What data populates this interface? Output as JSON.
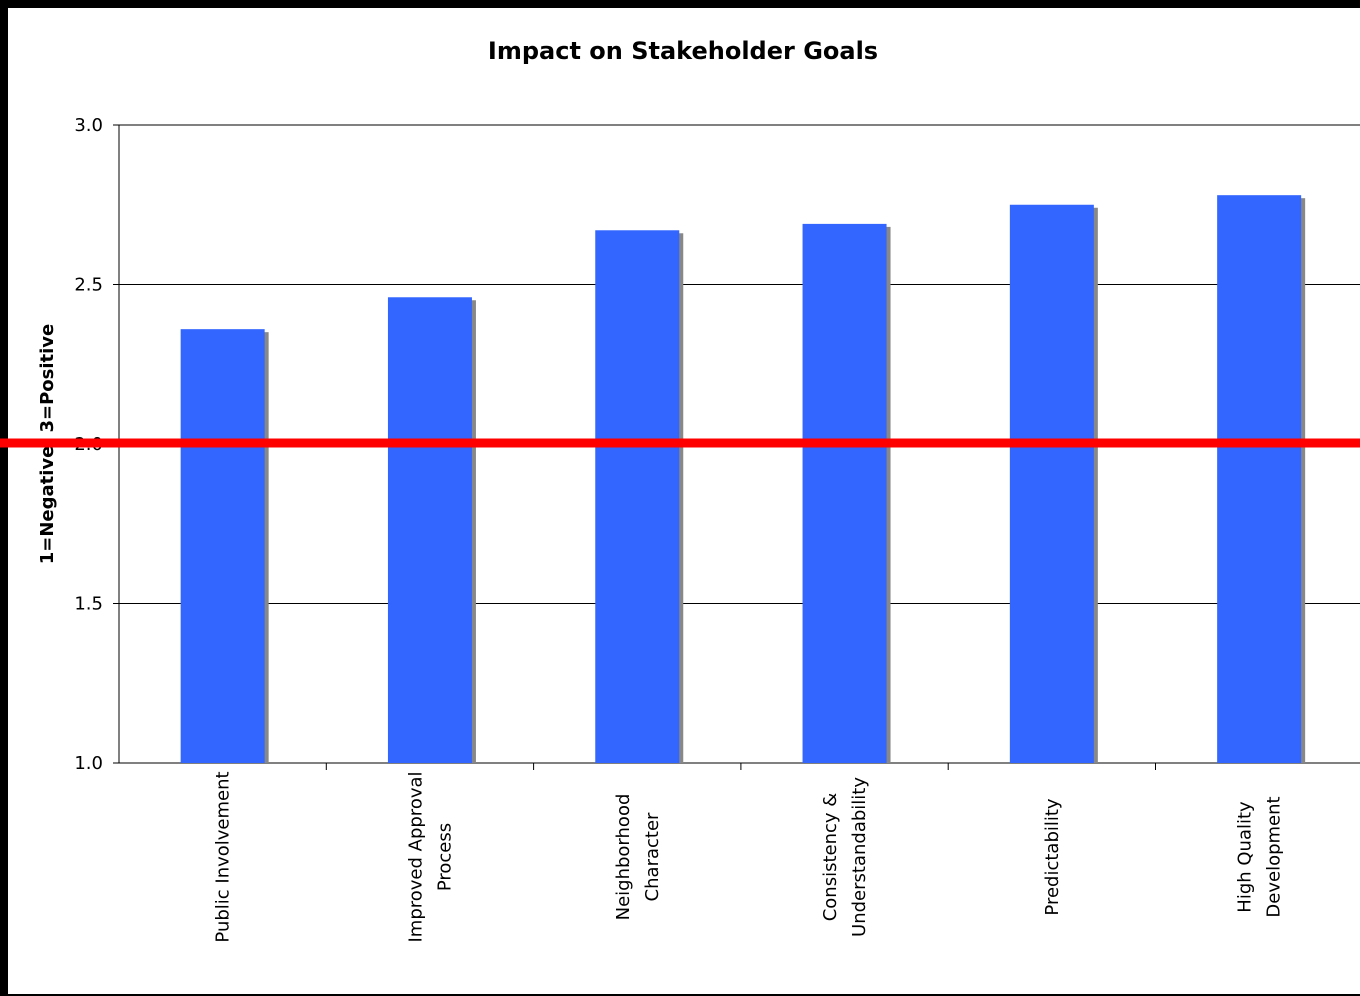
{
  "chart_data": {
    "type": "bar",
    "title": "Impact on Stakeholder Goals",
    "ylabel": "1=Negative, 3=Positive",
    "xlabel": "",
    "ylim": [
      1.0,
      3.0
    ],
    "yticks": [
      "1.0",
      "1.5",
      "2.0",
      "2.5",
      "3.0"
    ],
    "grid": true,
    "categories": [
      [
        "Public Involvement"
      ],
      [
        "Improved Approval",
        "Process"
      ],
      [
        "Neighborhood",
        "Character"
      ],
      [
        "Consistency &",
        "Understandability"
      ],
      [
        "Predictability"
      ],
      [
        "High Quality",
        "Development"
      ]
    ],
    "values": [
      2.36,
      2.46,
      2.67,
      2.69,
      2.75,
      2.78
    ],
    "reference_line": {
      "value": 2.0,
      "color": "#ff0000"
    },
    "colors": {
      "bar": "#3366ff",
      "bar_shadow": "#888888",
      "reference": "#ff0000"
    }
  }
}
